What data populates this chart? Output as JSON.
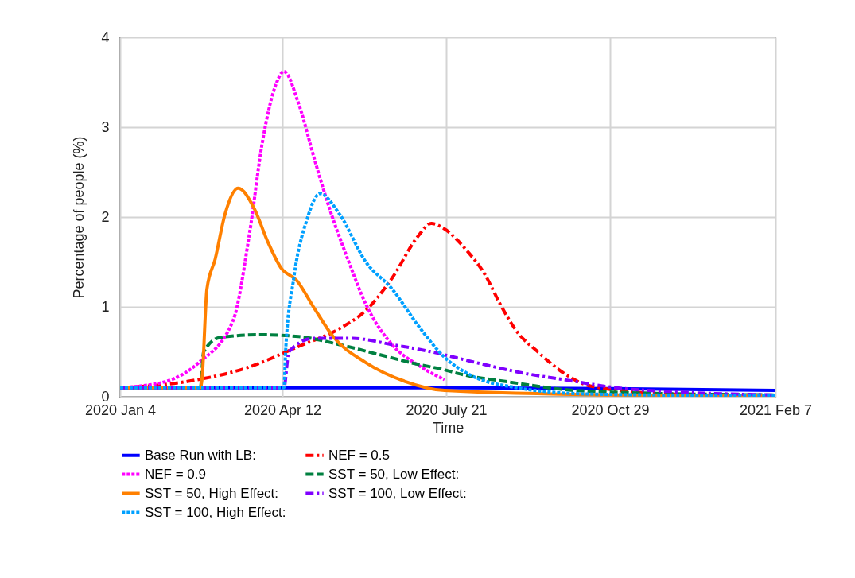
{
  "chart_data": {
    "type": "line",
    "xlabel": "Time",
    "ylabel": "Percentage of people (%)",
    "xlim": [
      "2020-01-04",
      "2021-02-07"
    ],
    "xticks": [
      {
        "value": "2020-01-04",
        "label": "2020 Jan 4"
      },
      {
        "value": "2020-04-12",
        "label": "2020 Apr 12"
      },
      {
        "value": "2020-07-21",
        "label": "2020 July 21"
      },
      {
        "value": "2020-10-29",
        "label": "2020 Oct 29"
      },
      {
        "value": "2021-02-07",
        "label": "2021 Feb 7"
      }
    ],
    "ylim": [
      0,
      4
    ],
    "yticks": [
      0,
      1,
      2,
      3,
      4
    ],
    "grid": true,
    "legend": "bottom",
    "series": [
      {
        "name": "Base Run with LB:",
        "color": "#0000ff",
        "line_style": "solid",
        "x": [
          "2020-01-04",
          "2020-04-13",
          "2020-07-22",
          "2020-10-30",
          "2021-02-07"
        ],
        "values": [
          0.1,
          0.1,
          0.1,
          0.09,
          0.07
        ]
      },
      {
        "name": "NEF = 0.5",
        "color": "#ff0000",
        "line_style": "dashdot",
        "x": [
          "2020-01-04",
          "2020-02-14",
          "2020-03-21",
          "2020-04-22",
          "2020-05-17",
          "2020-06-02",
          "2020-06-18",
          "2020-07-04",
          "2020-07-12",
          "2020-07-19",
          "2020-08-02",
          "2020-08-14",
          "2020-08-23",
          "2020-09-02",
          "2020-09-15",
          "2020-10-01",
          "2020-10-17",
          "2020-12-05",
          "2021-02-07"
        ],
        "values": [
          0.1,
          0.17,
          0.32,
          0.56,
          0.76,
          0.96,
          1.32,
          1.79,
          1.93,
          1.88,
          1.64,
          1.35,
          1.03,
          0.73,
          0.5,
          0.26,
          0.12,
          0.03,
          0.01
        ]
      },
      {
        "name": "NEF = 0.9",
        "color": "#ff00ff",
        "line_style": "dotted",
        "x": [
          "2020-01-04",
          "2020-02-01",
          "2020-02-21",
          "2020-03-13",
          "2020-03-23",
          "2020-03-31",
          "2020-04-08",
          "2020-04-13",
          "2020-04-22",
          "2020-05-02",
          "2020-05-12",
          "2020-05-22",
          "2020-06-02",
          "2020-06-18",
          "2020-07-04",
          "2020-07-20"
        ],
        "values": [
          0.1,
          0.17,
          0.38,
          0.85,
          1.82,
          2.85,
          3.47,
          3.62,
          3.26,
          2.62,
          2.03,
          1.53,
          1.03,
          0.58,
          0.35,
          0.19
        ]
      },
      {
        "name": "SST = 50, Low Effect:",
        "color": "#008040",
        "line_style": "dashed",
        "x": [
          "2020-01-04",
          "2020-02-22",
          "2020-02-24",
          "2020-03-05",
          "2020-03-29",
          "2020-04-22",
          "2020-05-17",
          "2020-06-10",
          "2020-07-04",
          "2020-07-20",
          "2020-07-28",
          "2020-08-30",
          "2020-10-01",
          "2020-11-02",
          "2021-02-07"
        ],
        "values": [
          0.1,
          0.1,
          0.5,
          0.66,
          0.69,
          0.67,
          0.58,
          0.47,
          0.36,
          0.3,
          0.26,
          0.16,
          0.08,
          0.05,
          0.02
        ]
      },
      {
        "name": "SST = 50, High Effect:",
        "color": "#ff8000",
        "line_style": "solid",
        "x": [
          "2020-01-04",
          "2020-02-22",
          "2020-02-23",
          "2020-02-26",
          "2020-03-02",
          "2020-03-08",
          "2020-03-16",
          "2020-03-26",
          "2020-04-03",
          "2020-04-11",
          "2020-04-21",
          "2020-05-01",
          "2020-05-13",
          "2020-06-02",
          "2020-06-26",
          "2020-07-20",
          "2020-10-30",
          "2021-02-07"
        ],
        "values": [
          0.1,
          0.1,
          0.2,
          1.2,
          1.53,
          2.03,
          2.32,
          2.09,
          1.73,
          1.44,
          1.29,
          1.0,
          0.67,
          0.38,
          0.17,
          0.07,
          0.02,
          0.01
        ]
      },
      {
        "name": "SST = 100, Low Effect:",
        "color": "#8000ff",
        "line_style": "dashdot",
        "x": [
          "2020-01-04",
          "2020-04-13",
          "2020-04-16",
          "2020-05-01",
          "2020-05-25",
          "2020-06-18",
          "2020-07-12",
          "2020-08-06",
          "2020-09-07",
          "2020-10-01",
          "2020-11-02",
          "2020-12-13",
          "2021-02-07"
        ],
        "values": [
          0.1,
          0.1,
          0.5,
          0.65,
          0.65,
          0.58,
          0.5,
          0.39,
          0.26,
          0.19,
          0.1,
          0.05,
          0.02
        ]
      },
      {
        "name": "SST = 100, High Effect:",
        "color": "#00a0ff",
        "line_style": "dotted",
        "x": [
          "2020-01-04",
          "2020-04-13",
          "2020-04-14",
          "2020-04-19",
          "2020-04-27",
          "2020-05-05",
          "2020-05-17",
          "2020-06-02",
          "2020-06-18",
          "2020-07-04",
          "2020-07-20",
          "2020-08-06",
          "2020-08-30",
          "2020-10-17",
          "2021-02-07"
        ],
        "values": [
          0.1,
          0.1,
          0.5,
          1.32,
          1.97,
          2.26,
          2.03,
          1.5,
          1.2,
          0.79,
          0.44,
          0.23,
          0.11,
          0.03,
          0.01
        ]
      }
    ]
  }
}
